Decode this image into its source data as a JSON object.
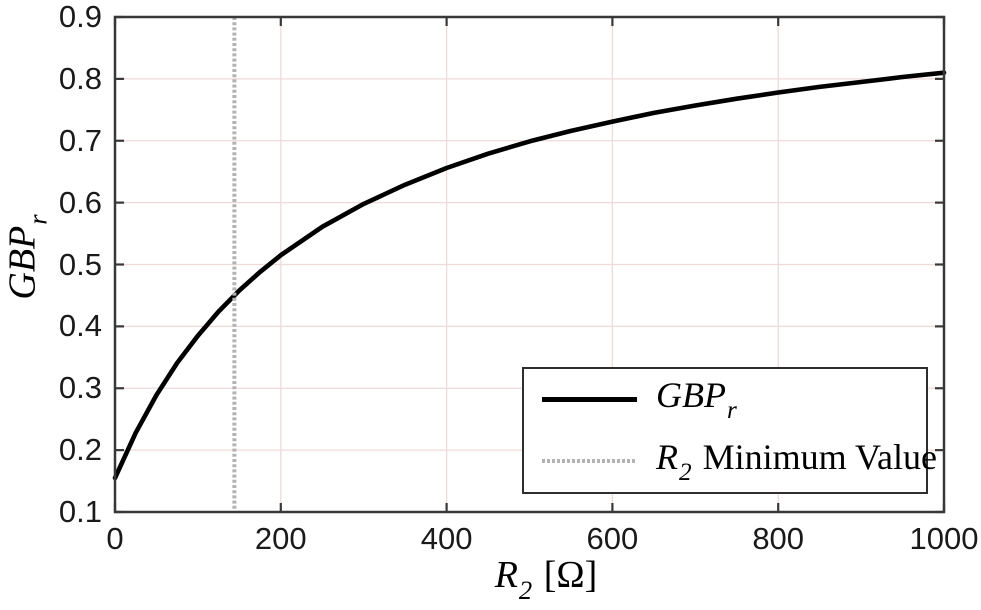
{
  "chart_data": {
    "type": "line",
    "title": "",
    "xlabel": {
      "main": "R",
      "sub": "2",
      "unit": " [Ω]"
    },
    "ylabel": {
      "main": "GBP",
      "sub": "r"
    },
    "xlim": [
      0,
      1000
    ],
    "ylim": [
      0.1,
      0.9
    ],
    "xticks": [
      0,
      200,
      400,
      600,
      800,
      1000
    ],
    "xtick_labels": [
      "0",
      "200",
      "400",
      "600",
      "800",
      "1000"
    ],
    "yticks": [
      0.1,
      0.2,
      0.3,
      0.4,
      0.5,
      0.6,
      0.7,
      0.8,
      0.9
    ],
    "ytick_labels": [
      "0.1",
      "0.2",
      "0.3",
      "0.4",
      "0.5",
      "0.6",
      "0.7",
      "0.8",
      "0.9"
    ],
    "grid": true,
    "grid_color": "#efdada",
    "axis_color": "#383838",
    "background_color": "#ffffff",
    "legend_position": "lower-right",
    "legend": {
      "entries": [
        {
          "symbol": "solid-line",
          "color": "#000000",
          "main": "GBP",
          "sub": "r",
          "rest": ""
        },
        {
          "symbol": "dotted-line",
          "color": "#b3b3b3",
          "main": "R",
          "sub": "2",
          "rest": " Minimum Value"
        }
      ]
    },
    "series": [
      {
        "name": "GBP_r",
        "type": "line",
        "color": "#000000",
        "x": [
          0,
          25,
          50,
          75,
          100,
          125,
          150,
          175,
          200,
          250,
          300,
          350,
          400,
          450,
          500,
          550,
          600,
          650,
          700,
          750,
          800,
          850,
          900,
          950,
          1000
        ],
        "y": [
          0.155,
          0.228,
          0.289,
          0.341,
          0.385,
          0.424,
          0.458,
          0.488,
          0.515,
          0.561,
          0.598,
          0.629,
          0.656,
          0.679,
          0.699,
          0.716,
          0.731,
          0.745,
          0.757,
          0.768,
          0.778,
          0.787,
          0.795,
          0.803,
          0.81
        ]
      },
      {
        "name": "R_2 Minimum Value",
        "type": "vline",
        "color": "#b3b3b3",
        "style": "dotted",
        "x": 144
      }
    ]
  }
}
